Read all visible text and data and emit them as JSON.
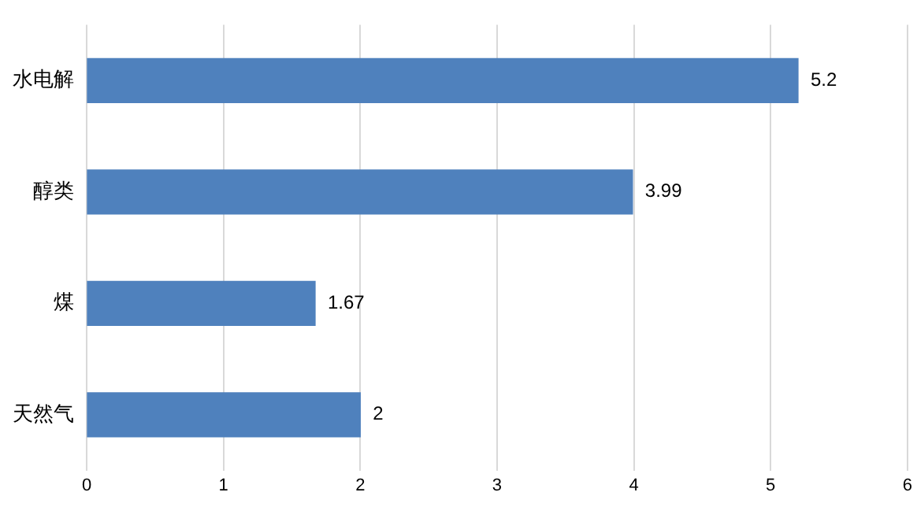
{
  "chart_data": {
    "type": "bar",
    "orientation": "horizontal",
    "categories": [
      "水电解",
      "醇类",
      "煤",
      "天然气"
    ],
    "values": [
      5.2,
      3.99,
      1.67,
      2
    ],
    "color": "#4f81bd",
    "xlim": [
      0,
      6
    ],
    "xticks": [
      0,
      1,
      2,
      3,
      4,
      5,
      6
    ],
    "grid": "x",
    "data_labels": true,
    "legend": false
  }
}
